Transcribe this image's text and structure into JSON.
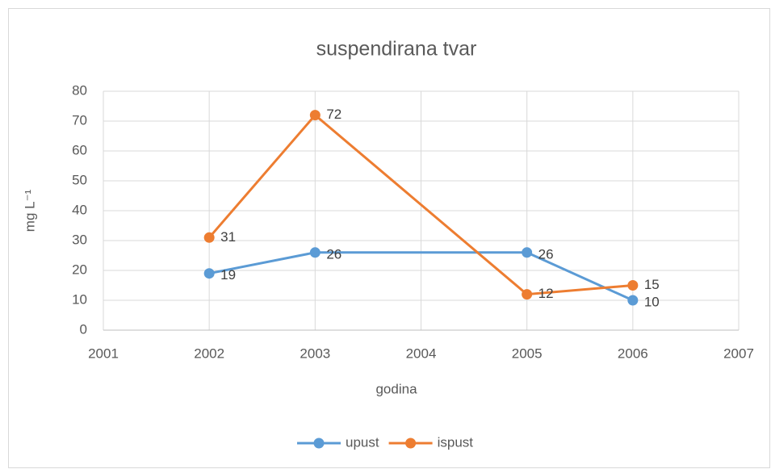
{
  "chart_data": {
    "type": "line",
    "title": "suspendirana tvar",
    "x_label": "godina",
    "y_label": "mg L⁻¹",
    "x": [
      2002,
      2003,
      2005,
      2006
    ],
    "series": [
      {
        "name": "upust",
        "color": "#5b9bd5",
        "values": [
          19,
          26,
          26,
          10
        ]
      },
      {
        "name": "ispust",
        "color": "#ed7d31",
        "values": [
          31,
          72,
          12,
          15
        ]
      }
    ],
    "xlim": [
      2001,
      2007
    ],
    "xticks": [
      2001,
      2002,
      2003,
      2004,
      2005,
      2006,
      2007
    ],
    "ylim": [
      0,
      80
    ],
    "yticks": [
      0,
      10,
      20,
      30,
      40,
      50,
      60,
      70,
      80
    ],
    "grid": true,
    "legend": "bottom"
  }
}
